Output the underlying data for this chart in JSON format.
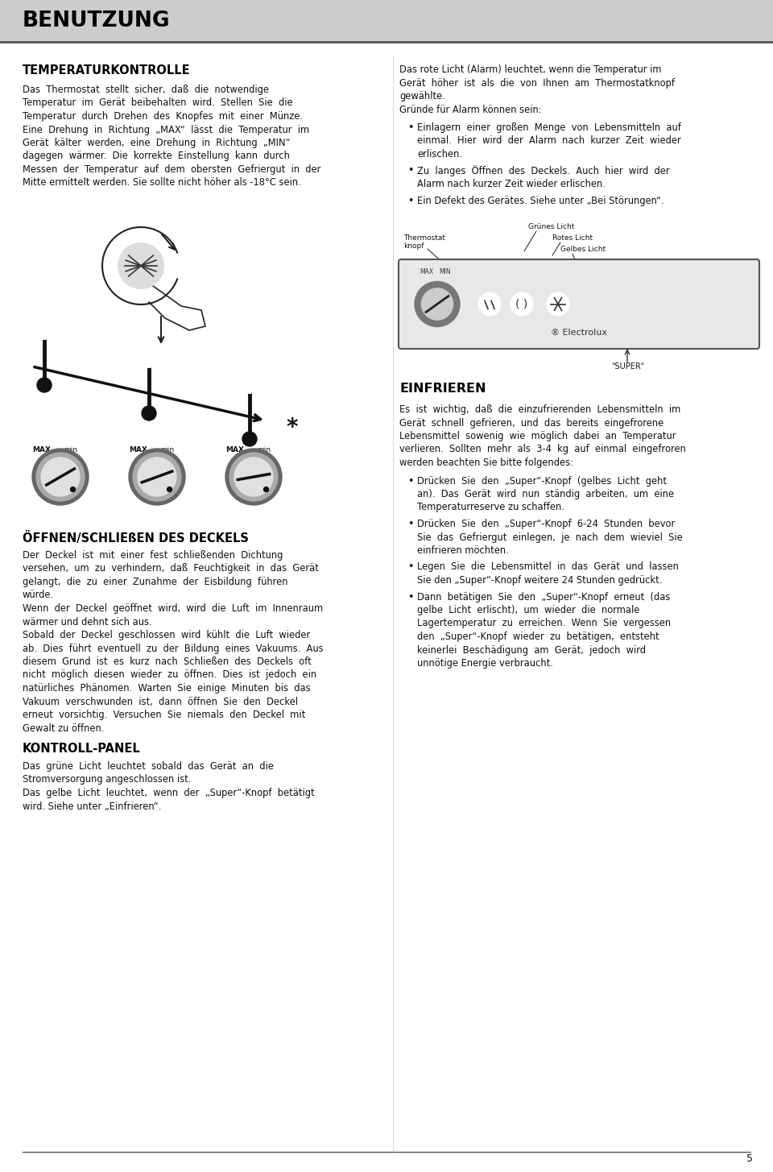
{
  "page_bg": "#ffffff",
  "header_bg": "#cccccc",
  "header_text": "BENUTZUNG",
  "header_text_color": "#000000",
  "body_text_color": "#111111",
  "page_number": "5",
  "separator_color": "#444444",
  "section1_title": "TEMPERATURKONTROLLE",
  "section1_body_lines": [
    "Das  Thermostat  stellt  sicher,  daß  die  notwendige",
    "Temperatur  im  Gerät  beibehalten  wird.  Stellen  Sie  die",
    "Temperatur  durch  Drehen  des  Knopfes  mit  einer  Münze.",
    "Eine  Drehung  in  Richtung  „MAX“  lässt  die  Temperatur  im",
    "Gerät  kälter  werden,  eine  Drehung  in  Richtung  „MIN“",
    "dagegen  wärmer.  Die  korrekte  Einstellung  kann  durch",
    "Messen  der  Temperatur  auf  dem  obersten  Gefriergut  in  der",
    "Mitte ermittelt werden. Sie sollte nicht höher als -18°C sein."
  ],
  "col2_intro_lines": [
    "Das rote Licht (Alarm) leuchtet, wenn die Temperatur im",
    "Gerät  höher  ist  als  die  von  Ihnen  am  Thermostatknopf",
    "gewählte.",
    "Gründe für Alarm können sein:"
  ],
  "col2_bullet1_lines": [
    "Einlagern  einer  großen  Menge  von  Lebensmitteln  auf",
    "einmal.  Hier  wird  der  Alarm  nach  kurzer  Zeit  wieder",
    "erlischen."
  ],
  "col2_bullet2_lines": [
    "Zu  langes  Öffnen  des  Deckels.  Auch  hier  wird  der",
    "Alarm nach kurzer Zeit wieder erlischen."
  ],
  "col2_bullet3_lines": [
    "Ein Defekt des Gerätes. Siehe unter „Bei Störungen“."
  ],
  "panel_label_thermostat": "Thermostat\nknopf",
  "panel_label_gruen": "Grünes Licht",
  "panel_label_rot": "Rotes Licht",
  "panel_label_gelb": "Gelbes Licht",
  "panel_label_super": "\"SUPER\"",
  "panel_label_electrolux": "® Electrolux",
  "section3_title": "ÖFFNEN/SCHLIEßEN DES DECKELS",
  "section3_lines": [
    "Der  Deckel  ist  mit  einer  fest  schließenden  Dichtung",
    "versehen,  um  zu  verhindern,  daß  Feuchtigkeit  in  das  Gerät",
    "gelangt,  die  zu  einer  Zunahme  der  Eisbildung  führen",
    "würde.",
    "Wenn  der  Deckel  geöffnet  wird,  wird  die  Luft  im  Innenraum",
    "wärmer und dehnt sich aus.",
    "Sobald  der  Deckel  geschlossen  wird  kühlt  die  Luft  wieder",
    "ab.  Dies  führt  eventuell  zu  der  Bildung  eines  Vakuums.  Aus",
    "diesem  Grund  ist  es  kurz  nach  Schließen  des  Deckels  oft",
    "nicht  möglich  diesen  wieder  zu  öffnen.  Dies  ist  jedoch  ein",
    "natürliches  Phänomen.  Warten  Sie  einige  Minuten  bis  das",
    "Vakuum  verschwunden  ist,  dann  öffnen  Sie  den  Deckel",
    "erneut  vorsichtig.  Versuchen  Sie  niemals  den  Deckel  mit",
    "Gewalt zu öffnen."
  ],
  "section4_title": "KONTROLL-PANEL",
  "section4_lines": [
    "Das  grüne  Licht  leuchtet  sobald  das  Gerät  an  die",
    "Stromversorgung angeschlossen ist.",
    "Das  gelbe  Licht  leuchtet,  wenn  der  „Super“-Knopf  betätigt",
    "wird. Siehe unter „Einfrieren“."
  ],
  "section5_title": "EINFRIEREN",
  "section5_intro_lines": [
    "Es  ist  wichtig,  daß  die  einzufrierenden  Lebensmitteln  im",
    "Gerät  schnell  gefrieren,  und  das  bereits  eingefrorene",
    "Lebensmittel  sowenig  wie  möglich  dabei  an  Temperatur",
    "verlieren.  Sollten  mehr  als  3-4  kg  auf  einmal  eingefroren",
    "werden beachten Sie bitte folgendes:"
  ],
  "ein_bullet1_lines": [
    "Drücken  Sie  den  „Super“-Knopf  (gelbes  Licht  geht",
    "an).  Das  Gerät  wird  nun  ständig  arbeiten,  um  eine",
    "Temperaturreserve zu schaffen."
  ],
  "ein_bullet2_lines": [
    "Drücken  Sie  den  „Super“-Knopf  6-24  Stunden  bevor",
    "Sie  das  Gefriergut  einlegen,  je  nach  dem  wieviel  Sie",
    "einfrieren möchten."
  ],
  "ein_bullet3_lines": [
    "Legen  Sie  die  Lebensmittel  in  das  Gerät  und  lassen",
    "Sie den „Super“-Knopf weitere 24 Stunden gedrückt."
  ],
  "ein_bullet4_lines": [
    "Dann  betätigen  Sie  den  „Super“-Knopf  erneut  (das",
    "gelbe  Licht  erlischt),  um  wieder  die  normale",
    "Lagertemperatur  zu  erreichen.  Wenn  Sie  vergessen",
    "den  „Super“-Knopf  wieder  zu  betätigen,  entsteht",
    "keinerlei  Beschädigung  am  Gerät,  jedoch  wird",
    "unnötige Energie verbraucht."
  ]
}
